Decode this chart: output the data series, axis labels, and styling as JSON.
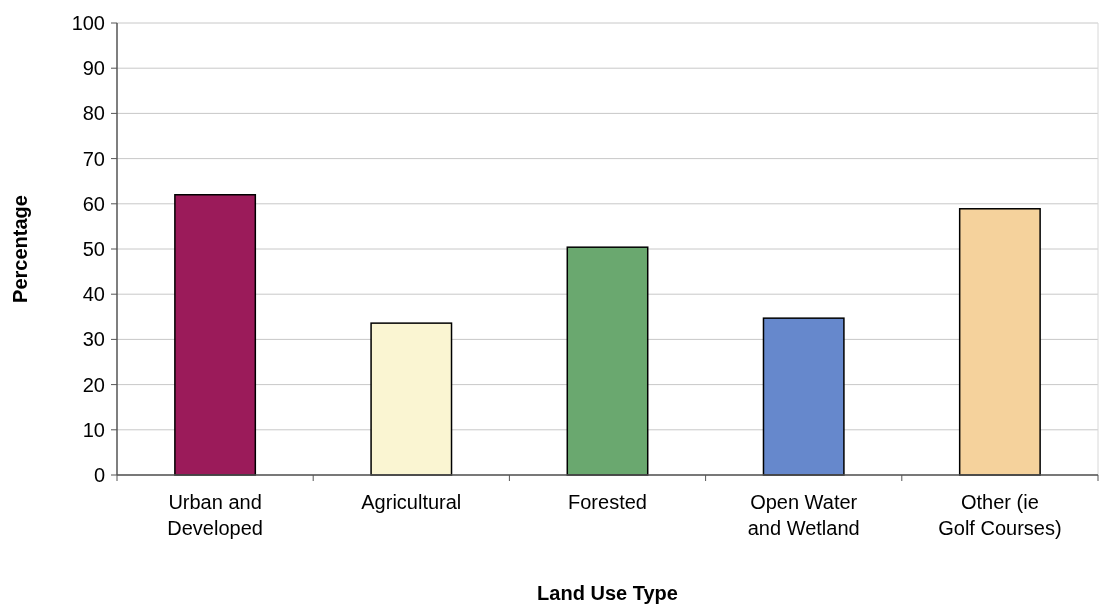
{
  "chart_data": {
    "type": "bar",
    "xlabel": "Land Use Type",
    "ylabel": "Percentage",
    "categories": [
      "Urban and Developed",
      "Agricultural",
      "Forested",
      "Open Water and Wetland",
      "Other (ie Golf Courses)"
    ],
    "values": [
      62,
      33.6,
      50.4,
      34.7,
      58.9
    ],
    "colors": [
      "#9b1b5a",
      "#faf5d2",
      "#6aa86f",
      "#6688cc",
      "#f5d29c"
    ],
    "ylim": [
      0,
      100
    ],
    "yticks": [
      0,
      10,
      20,
      30,
      40,
      50,
      60,
      70,
      80,
      90,
      100
    ],
    "grid": "y"
  }
}
